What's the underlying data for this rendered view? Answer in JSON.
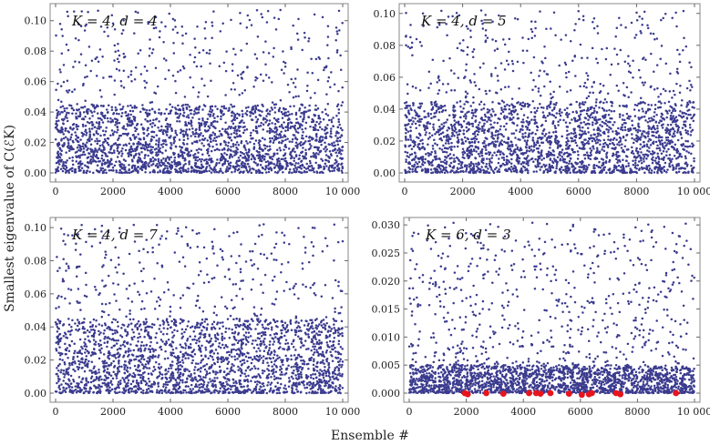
{
  "figure": {
    "ylabel": "Smallest eigenvalue of C(ℰK)",
    "xlabel": "Ensemble #"
  },
  "style": {
    "point_color": "#3b3b8f",
    "highlight_color": "#e8141d",
    "frame_color": "#888888"
  },
  "chart_data": [
    {
      "type": "scatter",
      "panel_label": "K = 4, d = 4",
      "xlim": [
        0,
        10000
      ],
      "ylim": [
        0,
        0.11
      ],
      "xticks": [
        0,
        2000,
        4000,
        6000,
        8000,
        10000
      ],
      "xtick_labels": [
        "0",
        "2000",
        "4000",
        "6000",
        "8000",
        "10 000"
      ],
      "yticks": [
        0.0,
        0.02,
        0.04,
        0.06,
        0.08,
        0.1
      ],
      "ytick_labels": [
        "0.00",
        "0.02",
        "0.04",
        "0.06",
        "0.08",
        "0.10"
      ],
      "series": [
        {
          "n_points": 10000,
          "value_range": [
            0.0,
            0.107
          ],
          "dense_band_max": 0.045
        }
      ]
    },
    {
      "type": "scatter",
      "panel_label": "K = 4, d = 5",
      "xlim": [
        0,
        10000
      ],
      "ylim": [
        0,
        0.105
      ],
      "xticks": [
        0,
        2000,
        4000,
        6000,
        8000,
        10000
      ],
      "xtick_labels": [
        "0",
        "2000",
        "4000",
        "6000",
        "8000",
        "10 000"
      ],
      "yticks": [
        0.0,
        0.02,
        0.04,
        0.06,
        0.08,
        0.1
      ],
      "ytick_labels": [
        "0.00",
        "0.02",
        "0.04",
        "0.06",
        "0.08",
        "0.10"
      ],
      "series": [
        {
          "n_points": 10000,
          "value_range": [
            0.0,
            0.102
          ],
          "dense_band_max": 0.045
        }
      ]
    },
    {
      "type": "scatter",
      "panel_label": "K = 4, d = 7",
      "xlim": [
        0,
        10000
      ],
      "ylim": [
        0,
        0.105
      ],
      "xticks": [
        0,
        2000,
        4000,
        6000,
        8000,
        10000
      ],
      "xtick_labels": [
        "0",
        "2000",
        "4000",
        "6000",
        "8000",
        "10 000"
      ],
      "yticks": [
        0.0,
        0.02,
        0.04,
        0.06,
        0.08,
        0.1
      ],
      "ytick_labels": [
        "0.00",
        "0.02",
        "0.04",
        "0.06",
        "0.08",
        "0.10"
      ],
      "series": [
        {
          "n_points": 10000,
          "value_range": [
            0.0,
            0.102
          ],
          "dense_band_max": 0.045
        }
      ]
    },
    {
      "type": "scatter",
      "panel_label": "K = 6, d = 3",
      "xlim": [
        0,
        10000
      ],
      "ylim": [
        0,
        0.031
      ],
      "xticks": [
        0,
        2000,
        4000,
        6000,
        8000,
        10000
      ],
      "xtick_labels": [
        "0",
        "2000",
        "4000",
        "6000",
        "8000",
        "10 000"
      ],
      "yticks": [
        0.0,
        0.005,
        0.01,
        0.015,
        0.02,
        0.025,
        0.03
      ],
      "ytick_labels": [
        "0.000",
        "0.005",
        "0.010",
        "0.015",
        "0.020",
        "0.025",
        "0.030"
      ],
      "series": [
        {
          "n_points": 10000,
          "value_range": [
            0.0,
            0.0305
          ],
          "dense_band_max": 0.005
        },
        {
          "highlight": true,
          "x": [
            1950,
            2050,
            2700,
            3300,
            4200,
            4450,
            4600,
            4950,
            5600,
            6050,
            6300,
            6400,
            7250,
            7400,
            9350
          ],
          "y": [
            0.0,
            -0.0002,
            0.0,
            -0.0001,
            0.0,
            0.0,
            -0.0001,
            0.0,
            -0.0001,
            -0.0003,
            -0.0002,
            0.0,
            0.0,
            -0.0002,
            0.0
          ]
        }
      ]
    }
  ]
}
